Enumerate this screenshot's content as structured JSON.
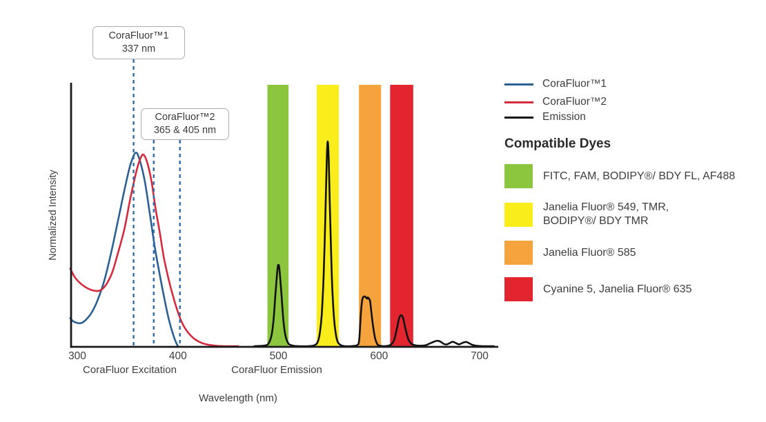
{
  "callouts": [
    {
      "line1": "CoraFluor™1",
      "line2": "337 nm"
    },
    {
      "line1": "CoraFluor™2",
      "line2": "365 & 405 nm"
    }
  ],
  "legend": {
    "items": [
      {
        "label": "CoraFluor™1",
        "color": "#2a5f94"
      },
      {
        "label": "CoraFluor™2",
        "color": "#d42a3c"
      },
      {
        "label": "Emission",
        "color": "#111111"
      }
    ]
  },
  "dyes": {
    "heading": "Compatible Dyes",
    "items": [
      {
        "color": "#8cc63f",
        "lines": [
          "FITC, FAM, BODIPY®/ BDY FL, AF488"
        ]
      },
      {
        "color": "#f9ed1b",
        "lines": [
          "Janelia Fluor® 549, TMR,",
          "BODIPY®/ BDY TMR"
        ]
      },
      {
        "color": "#f5a33c",
        "lines": [
          "Janelia Fluor® 585"
        ]
      },
      {
        "color": "#e32530",
        "lines": [
          "Cyanine 5, Janelia Fluor® 635"
        ]
      }
    ]
  },
  "chart_data": {
    "type": "line",
    "xlabel": "Wavelength (nm)",
    "ylabel": "Normalized Intensity",
    "x_axis": {
      "min": 293,
      "max": 718,
      "ticks": [
        300,
        400,
        500,
        600,
        700
      ]
    },
    "y_axis": {
      "min": 0,
      "max": 1.27,
      "ticks": []
    },
    "grid": false,
    "x_section_labels": [
      {
        "text": "CoraFluor Excitation",
        "center_nm": 352
      },
      {
        "text": "CoraFluor Emission",
        "center_nm": 498
      }
    ],
    "series": [
      {
        "name": "CoraFluor™1 excitation",
        "color": "#2a5f94",
        "points": [
          [
            293,
            0.135
          ],
          [
            296,
            0.12
          ],
          [
            300,
            0.112
          ],
          [
            304,
            0.112
          ],
          [
            308,
            0.125
          ],
          [
            314,
            0.16
          ],
          [
            320,
            0.22
          ],
          [
            327,
            0.32
          ],
          [
            334,
            0.46
          ],
          [
            341,
            0.62
          ],
          [
            348,
            0.78
          ],
          [
            353,
            0.88
          ],
          [
            358,
            0.935
          ],
          [
            362,
            0.9
          ],
          [
            367,
            0.8
          ],
          [
            372,
            0.645
          ],
          [
            377,
            0.48
          ],
          [
            382,
            0.345
          ],
          [
            387,
            0.22
          ],
          [
            391,
            0.13
          ],
          [
            395,
            0.06
          ],
          [
            398,
            0.02
          ],
          [
            400,
            0.0
          ]
        ]
      },
      {
        "name": "CoraFluor™2 excitation",
        "color": "#d42a3c",
        "points": [
          [
            293,
            0.375
          ],
          [
            298,
            0.33
          ],
          [
            304,
            0.3
          ],
          [
            310,
            0.28
          ],
          [
            317,
            0.268
          ],
          [
            323,
            0.27
          ],
          [
            329,
            0.3
          ],
          [
            335,
            0.36
          ],
          [
            341,
            0.46
          ],
          [
            347,
            0.57
          ],
          [
            353,
            0.72
          ],
          [
            359,
            0.85
          ],
          [
            363,
            0.91
          ],
          [
            366,
            0.925
          ],
          [
            370,
            0.88
          ],
          [
            374,
            0.79
          ],
          [
            378,
            0.66
          ],
          [
            382,
            0.55
          ],
          [
            386,
            0.43
          ],
          [
            391,
            0.32
          ],
          [
            395,
            0.245
          ],
          [
            400,
            0.165
          ],
          [
            404,
            0.115
          ],
          [
            408,
            0.08
          ],
          [
            413,
            0.05
          ],
          [
            418,
            0.03
          ],
          [
            424,
            0.015
          ],
          [
            430,
            0.007
          ],
          [
            438,
            0.002
          ],
          [
            448,
            0.0
          ],
          [
            460,
            0.0
          ]
        ]
      },
      {
        "name": "Emission",
        "color": "#111111",
        "points": [
          [
            476,
            0.0
          ],
          [
            486,
            0.003
          ],
          [
            490,
            0.012
          ],
          [
            493,
            0.05
          ],
          [
            495,
            0.12
          ],
          [
            497,
            0.25
          ],
          [
            499,
            0.37
          ],
          [
            500,
            0.393
          ],
          [
            501,
            0.37
          ],
          [
            503,
            0.25
          ],
          [
            505,
            0.12
          ],
          [
            507,
            0.05
          ],
          [
            510,
            0.012
          ],
          [
            514,
            0.003
          ],
          [
            520,
            0.0
          ],
          [
            530,
            0.0
          ],
          [
            536,
            0.005
          ],
          [
            539,
            0.02
          ],
          [
            541,
            0.06
          ],
          [
            543,
            0.15
          ],
          [
            545,
            0.35
          ],
          [
            547,
            0.7
          ],
          [
            548,
            0.9
          ],
          [
            549,
            0.99
          ],
          [
            550,
            0.9
          ],
          [
            551,
            0.7
          ],
          [
            553,
            0.35
          ],
          [
            555,
            0.15
          ],
          [
            557,
            0.06
          ],
          [
            559,
            0.02
          ],
          [
            562,
            0.005
          ],
          [
            566,
            0.0
          ],
          [
            572,
            0.0
          ],
          [
            578,
            0.004
          ],
          [
            580,
            0.02
          ],
          [
            581,
            0.08
          ],
          [
            582,
            0.16
          ],
          [
            583,
            0.215
          ],
          [
            584,
            0.235
          ],
          [
            586,
            0.24
          ],
          [
            588,
            0.23
          ],
          [
            589,
            0.235
          ],
          [
            591,
            0.22
          ],
          [
            592,
            0.18
          ],
          [
            594,
            0.1
          ],
          [
            596,
            0.04
          ],
          [
            598,
            0.012
          ],
          [
            600,
            0.003
          ],
          [
            604,
            0.0
          ],
          [
            609,
            0.002
          ],
          [
            612,
            0.008
          ],
          [
            615,
            0.03
          ],
          [
            618,
            0.09
          ],
          [
            620,
            0.135
          ],
          [
            622,
            0.15
          ],
          [
            624,
            0.135
          ],
          [
            626,
            0.09
          ],
          [
            629,
            0.035
          ],
          [
            632,
            0.012
          ],
          [
            636,
            0.004
          ],
          [
            641,
            0.002
          ],
          [
            646,
            0.004
          ],
          [
            650,
            0.012
          ],
          [
            655,
            0.022
          ],
          [
            658,
            0.026
          ],
          [
            661,
            0.022
          ],
          [
            664,
            0.012
          ],
          [
            667,
            0.008
          ],
          [
            670,
            0.014
          ],
          [
            673,
            0.021
          ],
          [
            676,
            0.016
          ],
          [
            679,
            0.009
          ],
          [
            681,
            0.011
          ],
          [
            684,
            0.018
          ],
          [
            687,
            0.02
          ],
          [
            690,
            0.013
          ],
          [
            693,
            0.006
          ],
          [
            697,
            0.002
          ],
          [
            703,
            0.0
          ],
          [
            714,
            0.0
          ]
        ]
      }
    ],
    "bands": [
      {
        "name": "green-filter-band",
        "color": "#8cc63f",
        "nm_range": [
          489,
          510
        ]
      },
      {
        "name": "yellow-filter-band",
        "color": "#f9ed1b",
        "nm_range": [
          538,
          560
        ]
      },
      {
        "name": "orange-filter-band",
        "color": "#f5a33c",
        "nm_range": [
          580,
          602
        ]
      },
      {
        "name": "red-filter-band",
        "color": "#e32530",
        "nm_range": [
          611,
          634
        ]
      }
    ],
    "markers": [
      {
        "label": "337 nm",
        "nm": 337,
        "drawn_nm": 356,
        "callout": 0,
        "color": "#2f6ba8"
      },
      {
        "label": "365 nm",
        "nm": 365,
        "drawn_nm": 376,
        "callout": 1,
        "color": "#2f6ba8"
      },
      {
        "label": "405 nm",
        "nm": 405,
        "drawn_nm": 402,
        "callout": 1,
        "color": "#2f6ba8"
      }
    ]
  }
}
